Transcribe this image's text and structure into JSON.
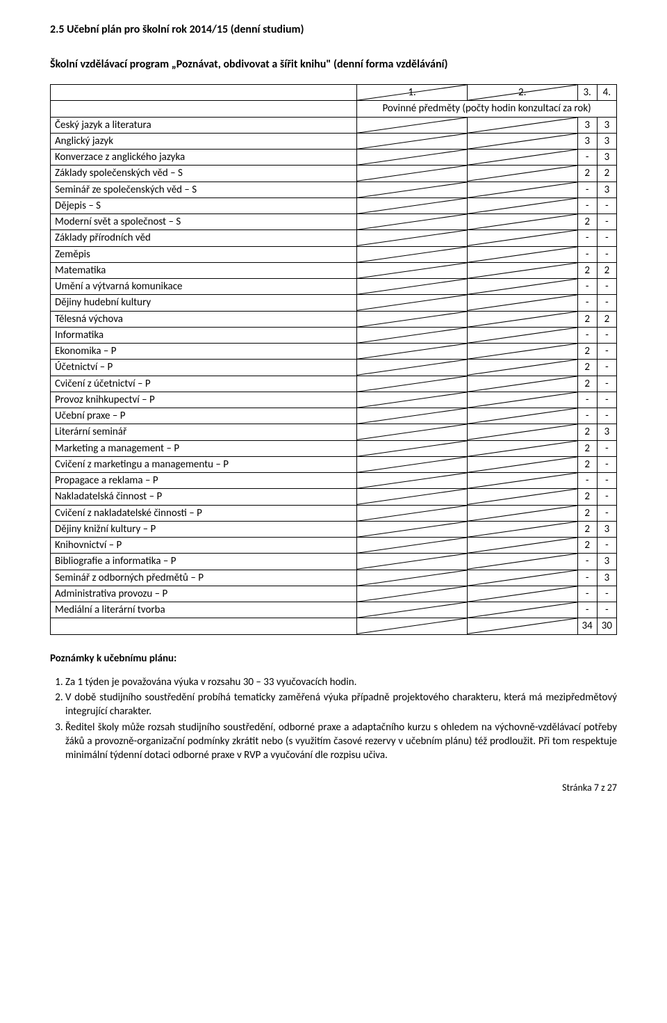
{
  "section_number": "2.5",
  "heading": "2.5 Učební plán pro školní rok 2014/15 (denní studium)",
  "subheading": "Školní vzdělávací program „Poznávat, obdivovat a šířit knihu\" (denní forma vzdělávání)",
  "table": {
    "header_cols": [
      "1.",
      "2.",
      "3.",
      "4."
    ],
    "header_span": "Povinné předměty (počty hodin konzultací za rok)",
    "rows": [
      {
        "label": "Český jazyk a literatura",
        "c1": "3",
        "c2": "3"
      },
      {
        "label": "Anglický jazyk",
        "c1": "3",
        "c2": "3"
      },
      {
        "label": "Konverzace z anglického jazyka",
        "c1": "-",
        "c2": "3"
      },
      {
        "label": "Základy společenských věd – S",
        "c1": "2",
        "c2": "2"
      },
      {
        "label": "Seminář ze společenských věd – S",
        "c1": "-",
        "c2": "3"
      },
      {
        "label": "Dějepis – S",
        "c1": "-",
        "c2": "-"
      },
      {
        "label": "Moderní svět a společnost – S",
        "c1": "2",
        "c2": "-"
      },
      {
        "label": "Základy přírodních věd",
        "c1": "-",
        "c2": "-"
      },
      {
        "label": "Zeměpis",
        "c1": "-",
        "c2": "-"
      },
      {
        "label": "Matematika",
        "c1": "2",
        "c2": "2"
      },
      {
        "label": "Umění a výtvarná komunikace",
        "c1": "-",
        "c2": "-"
      },
      {
        "label": "Dějiny hudební kultury",
        "c1": "-",
        "c2": "-"
      },
      {
        "label": "Tělesná výchova",
        "c1": "2",
        "c2": "2"
      },
      {
        "label": "Informatika",
        "c1": "-",
        "c2": "-"
      },
      {
        "label": "Ekonomika – P",
        "c1": "2",
        "c2": "-"
      },
      {
        "label": "Účetnictví – P",
        "c1": "2",
        "c2": "-"
      },
      {
        "label": "Cvičení z účetnictví – P",
        "c1": "2",
        "c2": "-"
      },
      {
        "label": "Provoz knihkupectví – P",
        "c1": "-",
        "c2": "-"
      },
      {
        "label": "Učební praxe – P",
        "c1": "-",
        "c2": "-"
      },
      {
        "label": "Literární seminář",
        "c1": "2",
        "c2": "3"
      },
      {
        "label": "Marketing a management – P",
        "c1": "2",
        "c2": "-"
      },
      {
        "label": "Cvičení z marketingu a managementu – P",
        "c1": "2",
        "c2": "-"
      },
      {
        "label": "Propagace a reklama – P",
        "c1": "-",
        "c2": "-"
      },
      {
        "label": "Nakladatelská činnost – P",
        "c1": "2",
        "c2": "-"
      },
      {
        "label": "Cvičení z nakladatelské činnosti – P",
        "c1": "2",
        "c2": "-"
      },
      {
        "label": "Dějiny knižní kultury – P",
        "c1": "2",
        "c2": "3"
      },
      {
        "label": "Knihovnictví – P",
        "c1": "2",
        "c2": "-"
      },
      {
        "label": "Bibliografie a informatika – P",
        "c1": "-",
        "c2": "3"
      },
      {
        "label": "Seminář z odborných předmětů – P",
        "c1": "-",
        "c2": "3"
      },
      {
        "label": "Administrativa provozu – P",
        "c1": "-",
        "c2": "-"
      },
      {
        "label": "Mediální a literární tvorba",
        "c1": "-",
        "c2": "-"
      }
    ],
    "totals": {
      "c1": "34",
      "c2": "30"
    }
  },
  "notes_title": "Poznámky k učebnímu plánu:",
  "notes": [
    "Za 1 týden je považována výuka v rozsahu 30 – 33 vyučovacích hodin.",
    "V době studijního soustředění probíhá tematicky zaměřená výuka případně projektového charakteru, která má mezipředmětový integrující charakter.",
    "Ředitel školy může rozsah studijního soustředění, odborné praxe a adaptačního kurzu s ohledem na výchovně-vzdělávací potřeby žáků a provozně-organizační podmínky zkrátit nebo (s využitím časové rezervy v učebním plánu) též prodloužit. Při tom respektuje minimální týdenní dotaci odborné praxe v RVP a vyučování dle rozpisu učiva."
  ],
  "footer": "Stránka 7 z 27",
  "colors": {
    "text": "#000000",
    "background": "#ffffff",
    "border": "#000000",
    "diag_line": "#000000"
  }
}
